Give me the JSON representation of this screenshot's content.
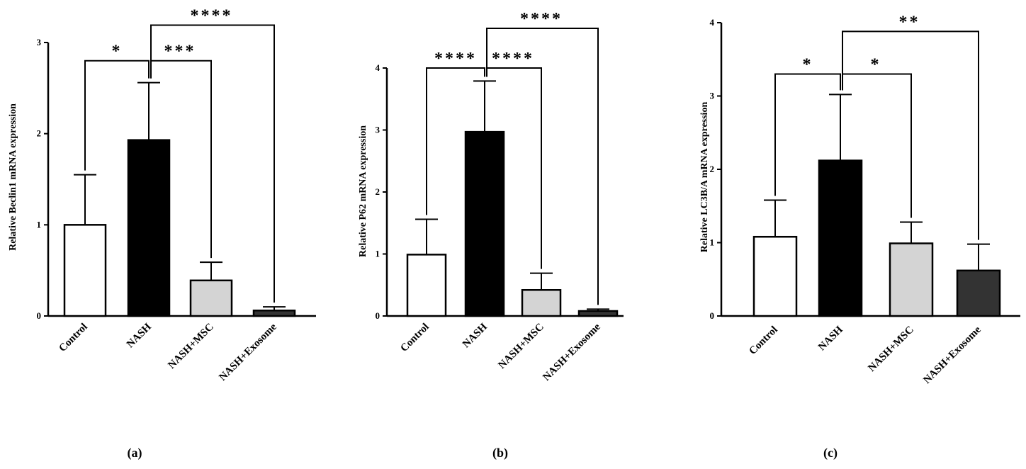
{
  "chart_data": [
    {
      "type": "bar",
      "panel": "(a)",
      "ylabel": "Relative Beclin1 mRNA expression",
      "categories": [
        "Control",
        "NASH",
        "NASH+MSC",
        "NASH+Exosome"
      ],
      "values": [
        1.0,
        1.93,
        0.39,
        0.06
      ],
      "errors": [
        0.55,
        0.63,
        0.2,
        0.04
      ],
      "bar_colors": [
        "#ffffff",
        "#000000",
        "#d4d4d4",
        "#333333"
      ],
      "ylim": [
        0,
        3
      ],
      "yticks": [
        "0",
        "1",
        "2",
        "3"
      ],
      "significance": [
        {
          "from": 0,
          "to": 1,
          "label": "*",
          "level": 2.8
        },
        {
          "from": 1,
          "to": 2,
          "label": "***",
          "level": 2.8
        },
        {
          "from": 1,
          "to": 3,
          "label": "****",
          "level": 3.19
        }
      ]
    },
    {
      "type": "bar",
      "panel": "(b)",
      "ylabel": "Relative P62 mRNA expression",
      "categories": [
        "Control",
        "NASH",
        "NASH+MSC",
        "NASH+Exosome"
      ],
      "values": [
        0.99,
        2.97,
        0.42,
        0.08
      ],
      "errors": [
        0.57,
        0.82,
        0.27,
        0.03
      ],
      "bar_colors": [
        "#ffffff",
        "#000000",
        "#d4d4d4",
        "#333333"
      ],
      "ylim": [
        0,
        4
      ],
      "yticks": [
        "0",
        "1",
        "2",
        "3",
        "4"
      ],
      "significance": [
        {
          "from": 0,
          "to": 1,
          "label": "****",
          "level": 4.0
        },
        {
          "from": 1,
          "to": 2,
          "label": "****",
          "level": 4.0
        },
        {
          "from": 1,
          "to": 3,
          "label": "****",
          "level": 4.64
        }
      ]
    },
    {
      "type": "bar",
      "panel": "(c)",
      "ylabel": "Relative LC3B/A mRNA expression",
      "categories": [
        "Control",
        "NASH",
        "NASH+MSC",
        "NASH+Exosome"
      ],
      "values": [
        1.08,
        2.12,
        0.99,
        0.62
      ],
      "errors": [
        0.5,
        0.9,
        0.29,
        0.36
      ],
      "bar_colors": [
        "#ffffff",
        "#000000",
        "#d4d4d4",
        "#333333"
      ],
      "ylim": [
        0,
        4
      ],
      "yticks": [
        "0",
        "1",
        "2",
        "3",
        "4"
      ],
      "significance": [
        {
          "from": 0,
          "to": 1,
          "label": "*",
          "level": 3.3
        },
        {
          "from": 1,
          "to": 2,
          "label": "*",
          "level": 3.3
        },
        {
          "from": 1,
          "to": 3,
          "label": "**",
          "level": 3.88
        }
      ]
    }
  ]
}
